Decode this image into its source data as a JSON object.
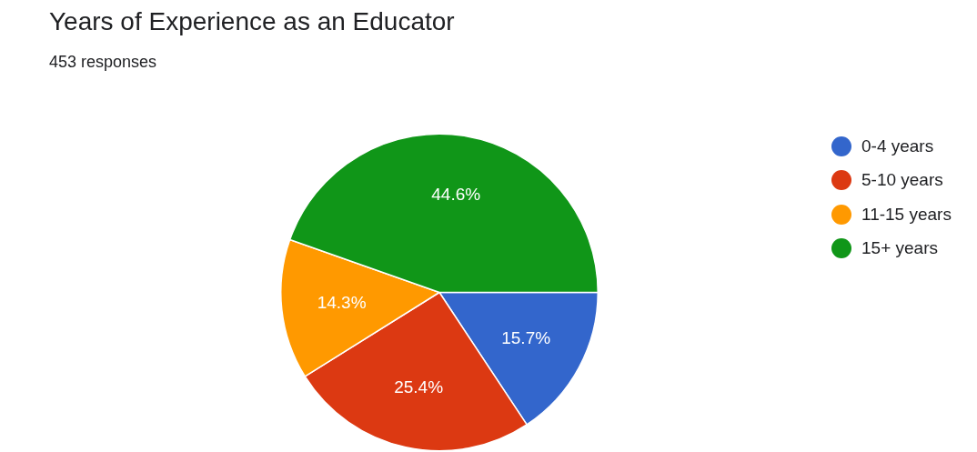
{
  "chart_data": {
    "type": "pie",
    "title": "Years of Experience as an Educator",
    "subtitle": "453 responses",
    "categories": [
      "0-4 years",
      "5-10 years",
      "11-15 years",
      "15+ years"
    ],
    "values": [
      15.7,
      25.4,
      14.3,
      44.6
    ],
    "colors": [
      "#3366cc",
      "#dc3912",
      "#ff9900",
      "#109618"
    ],
    "value_labels": [
      "15.7%",
      "25.4%",
      "14.3%",
      "44.6%"
    ],
    "legend": "top right"
  }
}
